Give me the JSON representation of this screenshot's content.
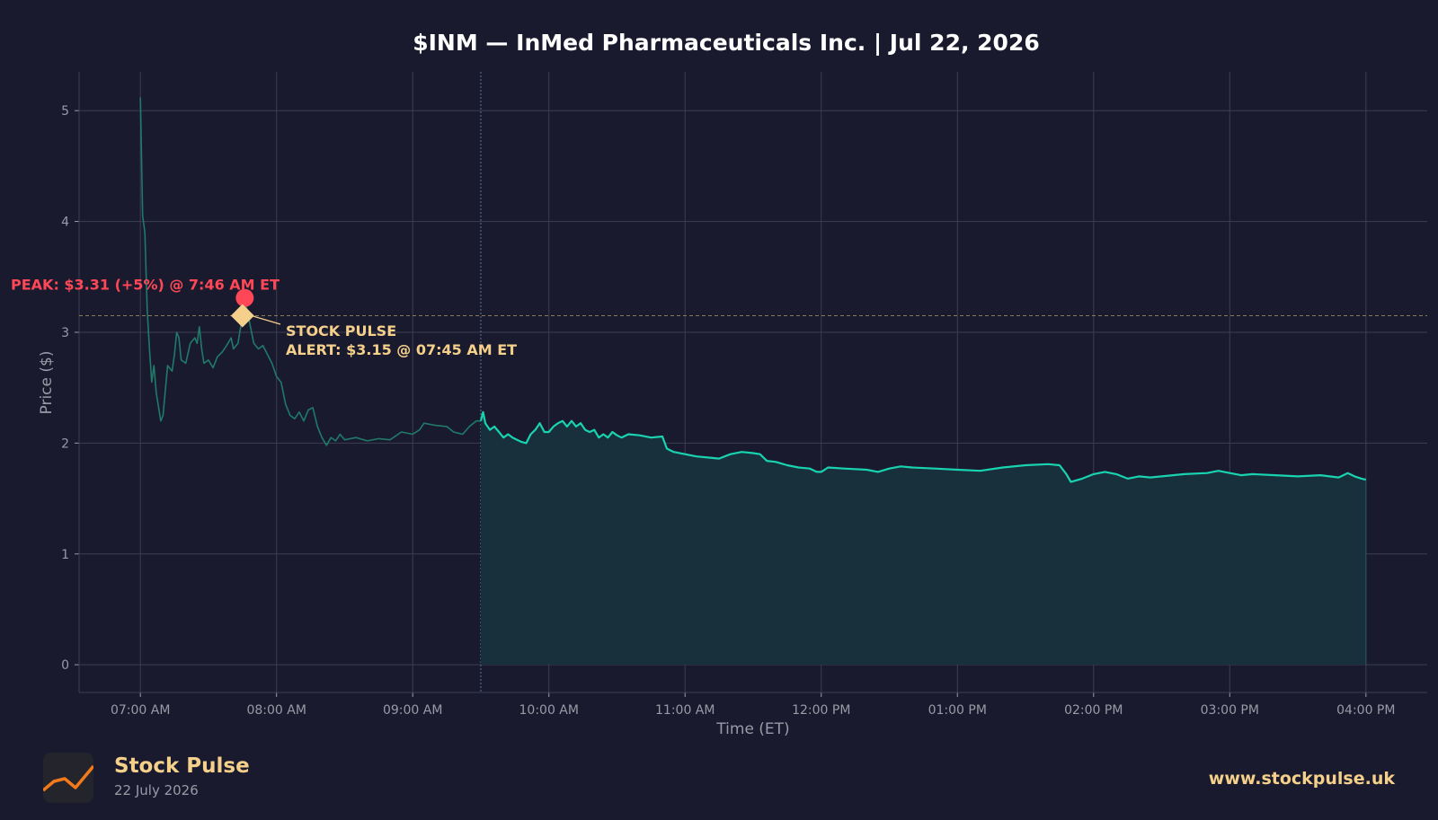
{
  "colors": {
    "background": "#1a1a2e",
    "line": "#19d3b0",
    "line_premarket": "#1f7a69",
    "fill": "#17303b",
    "peak": "#ff4757",
    "alert": "#f5d08a",
    "grid": "#3e3e52",
    "text": "#ffffff",
    "muted": "#9a9aa6"
  },
  "chart_data": {
    "type": "line",
    "title": "$INM — InMed Pharmaceuticals Inc.  |  Jul 22, 2026",
    "xlabel": "Time (ET)",
    "ylabel": "Price ($)",
    "x_ticks": [
      "07:00 AM",
      "08:00 AM",
      "09:00 AM",
      "10:00 AM",
      "11:00 AM",
      "12:00 PM",
      "01:00 PM",
      "02:00 PM",
      "03:00 PM",
      "04:00 PM"
    ],
    "y_ticks": [
      0,
      1,
      2,
      3,
      4,
      5
    ],
    "xlim": [
      "06:33",
      "16:27"
    ],
    "ylim": [
      -0.25,
      5.35
    ],
    "grid": true,
    "premarket_end": "09:30",
    "series": [
      {
        "points": [
          [
            "07:00",
            5.12
          ],
          [
            "07:01",
            4.05
          ],
          [
            "07:02",
            3.9
          ],
          [
            "07:03",
            3.2
          ],
          [
            "07:04",
            2.85
          ],
          [
            "07:05",
            2.55
          ],
          [
            "07:06",
            2.7
          ],
          [
            "07:07",
            2.45
          ],
          [
            "07:09",
            2.2
          ],
          [
            "07:10",
            2.25
          ],
          [
            "07:12",
            2.7
          ],
          [
            "07:14",
            2.65
          ],
          [
            "07:15",
            2.8
          ],
          [
            "07:16",
            3.0
          ],
          [
            "07:17",
            2.95
          ],
          [
            "07:18",
            2.75
          ],
          [
            "07:20",
            2.72
          ],
          [
            "07:22",
            2.9
          ],
          [
            "07:24",
            2.95
          ],
          [
            "07:25",
            2.9
          ],
          [
            "07:26",
            3.05
          ],
          [
            "07:27",
            2.85
          ],
          [
            "07:28",
            2.72
          ],
          [
            "07:30",
            2.75
          ],
          [
            "07:32",
            2.68
          ],
          [
            "07:34",
            2.78
          ],
          [
            "07:36",
            2.82
          ],
          [
            "07:38",
            2.88
          ],
          [
            "07:40",
            2.95
          ],
          [
            "07:41",
            2.85
          ],
          [
            "07:43",
            2.9
          ],
          [
            "07:45",
            3.15
          ],
          [
            "07:46",
            3.31
          ],
          [
            "07:47",
            3.2
          ],
          [
            "07:48",
            3.1
          ],
          [
            "07:50",
            2.9
          ],
          [
            "07:52",
            2.85
          ],
          [
            "07:54",
            2.88
          ],
          [
            "07:56",
            2.8
          ],
          [
            "07:58",
            2.72
          ],
          [
            "08:00",
            2.6
          ],
          [
            "08:02",
            2.55
          ],
          [
            "08:04",
            2.35
          ],
          [
            "08:06",
            2.25
          ],
          [
            "08:08",
            2.22
          ],
          [
            "08:10",
            2.28
          ],
          [
            "08:12",
            2.2
          ],
          [
            "08:14",
            2.3
          ],
          [
            "08:16",
            2.32
          ],
          [
            "08:18",
            2.15
          ],
          [
            "08:20",
            2.05
          ],
          [
            "08:22",
            1.98
          ],
          [
            "08:24",
            2.05
          ],
          [
            "08:26",
            2.02
          ],
          [
            "08:28",
            2.08
          ],
          [
            "08:30",
            2.03
          ],
          [
            "08:35",
            2.05
          ],
          [
            "08:40",
            2.02
          ],
          [
            "08:45",
            2.04
          ],
          [
            "08:50",
            2.03
          ],
          [
            "08:55",
            2.1
          ],
          [
            "09:00",
            2.08
          ],
          [
            "09:03",
            2.12
          ],
          [
            "09:05",
            2.18
          ],
          [
            "09:10",
            2.16
          ],
          [
            "09:15",
            2.15
          ],
          [
            "09:18",
            2.1
          ],
          [
            "09:22",
            2.08
          ],
          [
            "09:25",
            2.15
          ],
          [
            "09:28",
            2.2
          ],
          [
            "09:30",
            2.2
          ],
          [
            "09:31",
            2.28
          ],
          [
            "09:32",
            2.18
          ],
          [
            "09:34",
            2.12
          ],
          [
            "09:36",
            2.15
          ],
          [
            "09:38",
            2.1
          ],
          [
            "09:40",
            2.05
          ],
          [
            "09:42",
            2.08
          ],
          [
            "09:44",
            2.05
          ],
          [
            "09:46",
            2.03
          ],
          [
            "09:48",
            2.01
          ],
          [
            "09:50",
            2.0
          ],
          [
            "09:52",
            2.08
          ],
          [
            "09:54",
            2.12
          ],
          [
            "09:56",
            2.18
          ],
          [
            "09:58",
            2.1
          ],
          [
            "10:00",
            2.1
          ],
          [
            "10:02",
            2.15
          ],
          [
            "10:04",
            2.18
          ],
          [
            "10:06",
            2.2
          ],
          [
            "10:08",
            2.15
          ],
          [
            "10:10",
            2.2
          ],
          [
            "10:12",
            2.15
          ],
          [
            "10:14",
            2.18
          ],
          [
            "10:16",
            2.12
          ],
          [
            "10:18",
            2.1
          ],
          [
            "10:20",
            2.12
          ],
          [
            "10:22",
            2.05
          ],
          [
            "10:24",
            2.08
          ],
          [
            "10:26",
            2.05
          ],
          [
            "10:28",
            2.1
          ],
          [
            "10:30",
            2.07
          ],
          [
            "10:32",
            2.05
          ],
          [
            "10:35",
            2.08
          ],
          [
            "10:40",
            2.07
          ],
          [
            "10:45",
            2.05
          ],
          [
            "10:50",
            2.06
          ],
          [
            "10:52",
            1.95
          ],
          [
            "10:55",
            1.92
          ],
          [
            "11:00",
            1.9
          ],
          [
            "11:05",
            1.88
          ],
          [
            "11:10",
            1.87
          ],
          [
            "11:15",
            1.86
          ],
          [
            "11:20",
            1.9
          ],
          [
            "11:25",
            1.92
          ],
          [
            "11:30",
            1.91
          ],
          [
            "11:33",
            1.9
          ],
          [
            "11:36",
            1.84
          ],
          [
            "11:40",
            1.83
          ],
          [
            "11:45",
            1.8
          ],
          [
            "11:50",
            1.78
          ],
          [
            "11:55",
            1.77
          ],
          [
            "11:58",
            1.74
          ],
          [
            "12:00",
            1.74
          ],
          [
            "12:03",
            1.78
          ],
          [
            "12:10",
            1.77
          ],
          [
            "12:20",
            1.76
          ],
          [
            "12:25",
            1.74
          ],
          [
            "12:30",
            1.77
          ],
          [
            "12:35",
            1.79
          ],
          [
            "12:40",
            1.78
          ],
          [
            "12:50",
            1.77
          ],
          [
            "13:00",
            1.76
          ],
          [
            "13:10",
            1.75
          ],
          [
            "13:20",
            1.78
          ],
          [
            "13:30",
            1.8
          ],
          [
            "13:40",
            1.81
          ],
          [
            "13:45",
            1.8
          ],
          [
            "13:48",
            1.72
          ],
          [
            "13:50",
            1.65
          ],
          [
            "13:55",
            1.68
          ],
          [
            "14:00",
            1.72
          ],
          [
            "14:05",
            1.74
          ],
          [
            "14:10",
            1.72
          ],
          [
            "14:15",
            1.68
          ],
          [
            "14:20",
            1.7
          ],
          [
            "14:25",
            1.69
          ],
          [
            "14:30",
            1.7
          ],
          [
            "14:40",
            1.72
          ],
          [
            "14:50",
            1.73
          ],
          [
            "14:55",
            1.75
          ],
          [
            "15:00",
            1.73
          ],
          [
            "15:05",
            1.71
          ],
          [
            "15:10",
            1.72
          ],
          [
            "15:20",
            1.71
          ],
          [
            "15:30",
            1.7
          ],
          [
            "15:40",
            1.71
          ],
          [
            "15:48",
            1.69
          ],
          [
            "15:52",
            1.73
          ],
          [
            "15:55",
            1.7
          ],
          [
            "15:58",
            1.68
          ],
          [
            "16:00",
            1.67
          ]
        ]
      }
    ],
    "reference_line": 3.15,
    "annotations": {
      "peak": {
        "x": "07:46",
        "y": 3.31,
        "label": "PEAK: $3.31 (+5%) @ 7:46 AM ET"
      },
      "alert": {
        "x": "07:45",
        "y": 3.15,
        "label_line1": "STOCK PULSE",
        "label_line2": "ALERT: $3.15 @ 07:45 AM ET"
      }
    }
  },
  "footer": {
    "brand": "Stock Pulse",
    "date": "22 July 2026",
    "url": "www.stockpulse.uk",
    "logo_icon": "trend-line-icon"
  }
}
